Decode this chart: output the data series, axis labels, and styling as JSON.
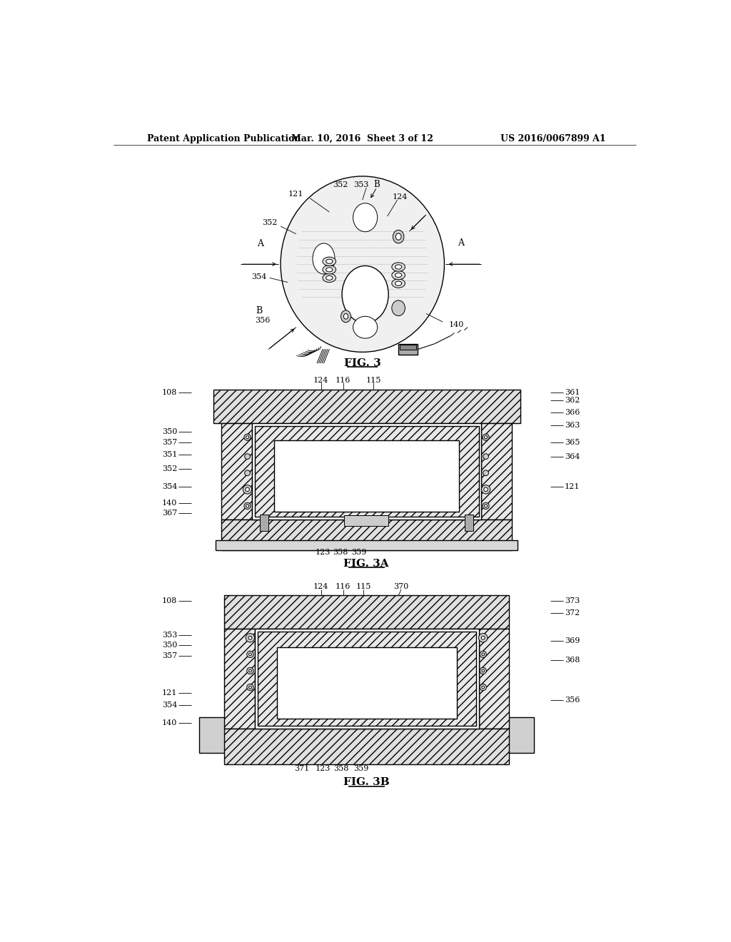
{
  "background_color": "#ffffff",
  "header_left": "Patent Application Publication",
  "header_center": "Mar. 10, 2016  Sheet 3 of 12",
  "header_right": "US 2016/0067899 A1",
  "fig3_title": "FIG. 3",
  "fig3a_title": "FIG. 3A",
  "fig3b_title": "FIG. 3B",
  "text_color": "#000000",
  "line_color": "#000000"
}
